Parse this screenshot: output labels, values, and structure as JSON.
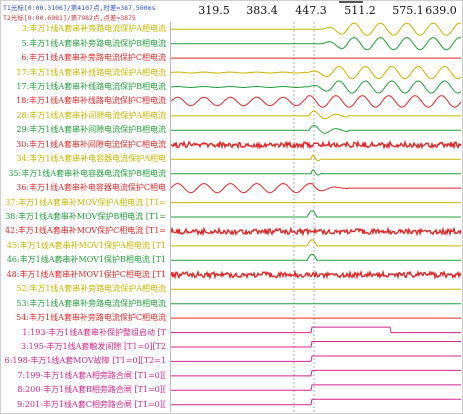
{
  "cursor_info": {
    "t1": "T1光标[0:00.3106]/第4107点,时差=387.500ms",
    "t2": "T2光标[0:00.6981]/第7982点,点差=3875"
  },
  "time_ruler": [
    "319.5",
    "383.4",
    "447.3",
    "511.2",
    "575.1",
    "639.0"
  ],
  "channels": [
    {
      "label": "3:丰万1线A套串补旁路电流保护A相电流",
      "color": "#c8b400",
      "wave": "sine-late"
    },
    {
      "label": "5:丰万1线A套串补旁路电流保护B相电流",
      "color": "#21a03a",
      "wave": "sine-late"
    },
    {
      "label": "6:丰万1线A套串补旁路电流保护C相电流",
      "color": "#e02828",
      "wave": "flat"
    },
    {
      "label": "17:丰万1线A套串补线路电流保护A相电流",
      "color": "#c8b400",
      "wave": "sine-mid"
    },
    {
      "label": "17:丰万1线A套串补线路电流保护B相电流",
      "color": "#21a03a",
      "wave": "sine-mid"
    },
    {
      "label": "18:丰万1线A套串补线路电流保护C相电流",
      "color": "#e02828",
      "wave": "sine-full"
    },
    {
      "label": "28:丰万1线A套串补间隙电流保护A相电流",
      "color": "#c8b400",
      "wave": "burst-mid"
    },
    {
      "label": "29:丰万1线A套串补间隙电流保护B相电流",
      "color": "#21a03a",
      "wave": "burst-mid"
    },
    {
      "label": "30:丰万1线A套串补间隙电流保护C相电流",
      "color": "#e02828",
      "wave": "noise"
    },
    {
      "label": "34:丰万1线A套串补电容器电流保护A相电",
      "color": "#c8b400",
      "wave": "spike"
    },
    {
      "label": "35:丰万1线A套串补电容器电流保护B相电流",
      "color": "#21a03a",
      "wave": "spike"
    },
    {
      "label": "36:丰万1线A套串补电容器电流保护C相电",
      "color": "#e02828",
      "wave": "sine-early"
    },
    {
      "label": "37:丰万1线A套串补MOV保护A相电流 [T1=",
      "color": "#c8b400",
      "wave": "flat"
    },
    {
      "label": "38:丰万1线A套串补MOV保护B相电流 [T1=",
      "color": "#21a03a",
      "wave": "pulse"
    },
    {
      "label": "42:丰万1线A套串补MOV保护C相电流 [T1=",
      "color": "#e02828",
      "wave": "noise"
    },
    {
      "label": "45:丰万1线A套串补MOV1保护A相电流 [T1",
      "color": "#c8b400",
      "wave": "pulse"
    },
    {
      "label": "46:丰万1线A套串补MOV1保护B相电流 [T1",
      "color": "#21a03a",
      "wave": "pulse"
    },
    {
      "label": "48:丰万1线A套串补MOV1保护C相电流 [T1",
      "color": "#e02828",
      "wave": "noise"
    },
    {
      "label": "52:丰万1线A套串补旁路电流保护A相电流",
      "color": "#c8b400",
      "wave": "flat"
    },
    {
      "label": "53:丰万1线A套串补旁路电流保护B相电流",
      "color": "#21a03a",
      "wave": "flat"
    },
    {
      "label": "54:丰万1线A套串补旁路电流保护C相电流",
      "color": "#e02828",
      "wave": "flat"
    },
    {
      "label": "1:193-丰万1线A套串补保护整组启动 [T",
      "color": "#d0268c",
      "wave": "step-high"
    },
    {
      "label": "3:195-丰万1线A套触发间隙 [T1=0][T2",
      "color": "#d0268c",
      "wave": "step-low"
    },
    {
      "label": "6:198-丰万1线A套MOV故障 [T1=0][T2=1",
      "color": "#d0268c",
      "wave": "step-low"
    },
    {
      "label": "7:199-丰万1线A套A相旁路合闸 [T1=0][",
      "color": "#d0268c",
      "wave": "step-low"
    },
    {
      "label": "8:200-丰万1线A套B相旁路合闸 [T1=0][",
      "color": "#d0268c",
      "wave": "step-low"
    },
    {
      "label": "9:201-丰万1线A套C相旁路合闸 [T1=0][",
      "color": "#d0268c",
      "wave": "step-low"
    }
  ]
}
